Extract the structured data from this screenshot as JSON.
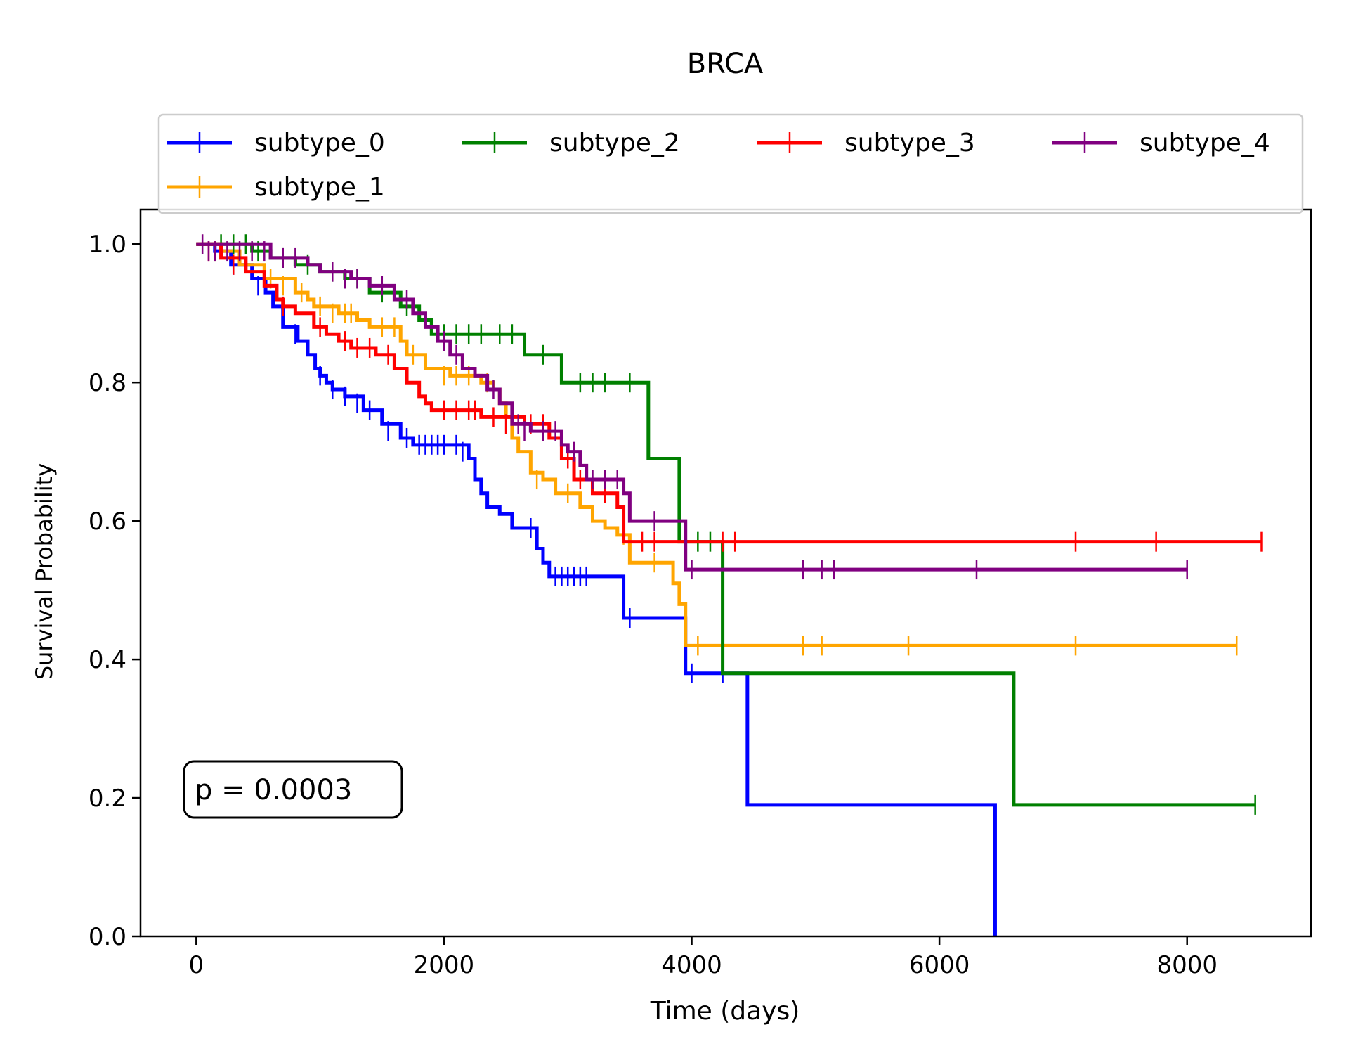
{
  "chart_data": {
    "type": "line",
    "title": "BRCA",
    "xlabel": "Time (days)",
    "ylabel": "Survival Probability",
    "xlim": [
      -450,
      9000
    ],
    "ylim": [
      0.0,
      1.05
    ],
    "x_ticks": [
      0,
      2000,
      4000,
      6000,
      8000
    ],
    "x_tick_labels": [
      "0",
      "2000",
      "4000",
      "6000",
      "8000"
    ],
    "y_ticks": [
      0.0,
      0.2,
      0.4,
      0.6,
      0.8,
      1.0
    ],
    "y_tick_labels": [
      "0.0",
      "0.2",
      "0.4",
      "0.6",
      "0.8",
      "1.0"
    ],
    "grid": false,
    "legend": {
      "placement": "top-center, above plot",
      "columns": 4
    },
    "annotation": {
      "text": "p = 0.0003",
      "placement": "lower-left"
    },
    "series": [
      {
        "name": "subtype_0",
        "color": "#0000ff",
        "steps": [
          [
            0,
            1.0
          ],
          [
            150,
            0.99
          ],
          [
            280,
            0.97
          ],
          [
            450,
            0.95
          ],
          [
            560,
            0.93
          ],
          [
            620,
            0.91
          ],
          [
            700,
            0.88
          ],
          [
            820,
            0.86
          ],
          [
            900,
            0.84
          ],
          [
            960,
            0.82
          ],
          [
            1000,
            0.81
          ],
          [
            1050,
            0.8
          ],
          [
            1100,
            0.79
          ],
          [
            1200,
            0.78
          ],
          [
            1350,
            0.76
          ],
          [
            1500,
            0.74
          ],
          [
            1650,
            0.72
          ],
          [
            1750,
            0.71
          ],
          [
            2200,
            0.69
          ],
          [
            2250,
            0.66
          ],
          [
            2300,
            0.64
          ],
          [
            2350,
            0.62
          ],
          [
            2450,
            0.61
          ],
          [
            2550,
            0.59
          ],
          [
            2750,
            0.56
          ],
          [
            2800,
            0.54
          ],
          [
            2850,
            0.52
          ],
          [
            3450,
            0.46
          ],
          [
            3950,
            0.38
          ],
          [
            4450,
            0.19
          ],
          [
            6450,
            0.0
          ]
        ],
        "end_x": 6450,
        "censored": [
          [
            300,
            0.97
          ],
          [
            500,
            0.94
          ],
          [
            800,
            0.87
          ],
          [
            1000,
            0.81
          ],
          [
            1100,
            0.79
          ],
          [
            1200,
            0.78
          ],
          [
            1300,
            0.77
          ],
          [
            1400,
            0.76
          ],
          [
            1550,
            0.73
          ],
          [
            1700,
            0.72
          ],
          [
            1800,
            0.71
          ],
          [
            1850,
            0.71
          ],
          [
            1900,
            0.71
          ],
          [
            1950,
            0.71
          ],
          [
            2000,
            0.71
          ],
          [
            2100,
            0.71
          ],
          [
            2150,
            0.7
          ],
          [
            2700,
            0.59
          ],
          [
            2900,
            0.52
          ],
          [
            2950,
            0.52
          ],
          [
            3000,
            0.52
          ],
          [
            3050,
            0.52
          ],
          [
            3100,
            0.52
          ],
          [
            3150,
            0.52
          ],
          [
            3500,
            0.46
          ],
          [
            4000,
            0.38
          ],
          [
            4250,
            0.38
          ]
        ]
      },
      {
        "name": "subtype_1",
        "color": "#ffa500",
        "steps": [
          [
            0,
            1.0
          ],
          [
            200,
            0.99
          ],
          [
            350,
            0.97
          ],
          [
            550,
            0.95
          ],
          [
            800,
            0.93
          ],
          [
            900,
            0.92
          ],
          [
            950,
            0.91
          ],
          [
            1150,
            0.9
          ],
          [
            1300,
            0.89
          ],
          [
            1400,
            0.88
          ],
          [
            1650,
            0.86
          ],
          [
            1700,
            0.84
          ],
          [
            1850,
            0.82
          ],
          [
            2050,
            0.81
          ],
          [
            2300,
            0.8
          ],
          [
            2400,
            0.79
          ],
          [
            2450,
            0.77
          ],
          [
            2500,
            0.75
          ],
          [
            2550,
            0.72
          ],
          [
            2600,
            0.7
          ],
          [
            2700,
            0.67
          ],
          [
            2800,
            0.66
          ],
          [
            2900,
            0.64
          ],
          [
            3100,
            0.62
          ],
          [
            3200,
            0.6
          ],
          [
            3300,
            0.59
          ],
          [
            3400,
            0.58
          ],
          [
            3500,
            0.54
          ],
          [
            3850,
            0.51
          ],
          [
            3900,
            0.48
          ],
          [
            3950,
            0.42
          ]
        ],
        "end_x": 8400,
        "censored": [
          [
            150,
            0.99
          ],
          [
            300,
            0.98
          ],
          [
            600,
            0.95
          ],
          [
            700,
            0.94
          ],
          [
            850,
            0.93
          ],
          [
            1000,
            0.91
          ],
          [
            1100,
            0.9
          ],
          [
            1200,
            0.9
          ],
          [
            1250,
            0.9
          ],
          [
            1500,
            0.88
          ],
          [
            1600,
            0.88
          ],
          [
            1750,
            0.84
          ],
          [
            2000,
            0.81
          ],
          [
            2100,
            0.81
          ],
          [
            2200,
            0.81
          ],
          [
            2350,
            0.8
          ],
          [
            2750,
            0.66
          ],
          [
            3000,
            0.64
          ],
          [
            3450,
            0.58
          ],
          [
            3700,
            0.54
          ],
          [
            4050,
            0.42
          ],
          [
            4900,
            0.42
          ],
          [
            5050,
            0.42
          ],
          [
            5750,
            0.42
          ],
          [
            7100,
            0.42
          ],
          [
            8400,
            0.42
          ]
        ]
      },
      {
        "name": "subtype_2",
        "color": "#008000",
        "steps": [
          [
            0,
            1.0
          ],
          [
            450,
            0.99
          ],
          [
            600,
            0.98
          ],
          [
            800,
            0.97
          ],
          [
            1000,
            0.96
          ],
          [
            1200,
            0.95
          ],
          [
            1400,
            0.93
          ],
          [
            1650,
            0.91
          ],
          [
            1800,
            0.89
          ],
          [
            1900,
            0.87
          ],
          [
            2650,
            0.84
          ],
          [
            2950,
            0.8
          ],
          [
            3650,
            0.69
          ],
          [
            3900,
            0.57
          ],
          [
            4250,
            0.38
          ],
          [
            6600,
            0.19
          ]
        ],
        "end_x": 8550,
        "censored": [
          [
            200,
            1.0
          ],
          [
            300,
            1.0
          ],
          [
            400,
            1.0
          ],
          [
            500,
            0.99
          ],
          [
            700,
            0.98
          ],
          [
            900,
            0.97
          ],
          [
            1100,
            0.96
          ],
          [
            1300,
            0.95
          ],
          [
            1500,
            0.93
          ],
          [
            1700,
            0.91
          ],
          [
            2000,
            0.87
          ],
          [
            2100,
            0.87
          ],
          [
            2200,
            0.87
          ],
          [
            2300,
            0.87
          ],
          [
            2450,
            0.87
          ],
          [
            2550,
            0.87
          ],
          [
            2800,
            0.84
          ],
          [
            3100,
            0.8
          ],
          [
            3200,
            0.8
          ],
          [
            3300,
            0.8
          ],
          [
            3500,
            0.8
          ],
          [
            4050,
            0.57
          ],
          [
            4150,
            0.57
          ],
          [
            8550,
            0.19
          ]
        ]
      },
      {
        "name": "subtype_3",
        "color": "#ff0000",
        "steps": [
          [
            0,
            1.0
          ],
          [
            200,
            0.98
          ],
          [
            400,
            0.96
          ],
          [
            550,
            0.94
          ],
          [
            650,
            0.92
          ],
          [
            700,
            0.91
          ],
          [
            800,
            0.9
          ],
          [
            950,
            0.88
          ],
          [
            1050,
            0.87
          ],
          [
            1150,
            0.86
          ],
          [
            1250,
            0.85
          ],
          [
            1450,
            0.84
          ],
          [
            1600,
            0.82
          ],
          [
            1700,
            0.8
          ],
          [
            1800,
            0.78
          ],
          [
            1850,
            0.77
          ],
          [
            1900,
            0.76
          ],
          [
            2300,
            0.75
          ],
          [
            2650,
            0.74
          ],
          [
            2850,
            0.72
          ],
          [
            2950,
            0.69
          ],
          [
            3050,
            0.66
          ],
          [
            3200,
            0.64
          ],
          [
            3400,
            0.62
          ],
          [
            3450,
            0.57
          ]
        ],
        "end_x": 8600,
        "censored": [
          [
            100,
            0.99
          ],
          [
            300,
            0.97
          ],
          [
            700,
            0.91
          ],
          [
            1000,
            0.88
          ],
          [
            1200,
            0.86
          ],
          [
            1300,
            0.85
          ],
          [
            1400,
            0.85
          ],
          [
            1550,
            0.84
          ],
          [
            2000,
            0.76
          ],
          [
            2100,
            0.76
          ],
          [
            2200,
            0.76
          ],
          [
            2250,
            0.76
          ],
          [
            2400,
            0.75
          ],
          [
            2500,
            0.74
          ],
          [
            2700,
            0.74
          ],
          [
            2800,
            0.74
          ],
          [
            3000,
            0.69
          ],
          [
            3100,
            0.66
          ],
          [
            3300,
            0.64
          ],
          [
            3600,
            0.57
          ],
          [
            3700,
            0.57
          ],
          [
            4250,
            0.57
          ],
          [
            4350,
            0.57
          ],
          [
            7100,
            0.57
          ],
          [
            7750,
            0.57
          ],
          [
            8600,
            0.57
          ]
        ]
      },
      {
        "name": "subtype_4",
        "color": "#800080",
        "steps": [
          [
            0,
            1.0
          ],
          [
            600,
            0.98
          ],
          [
            900,
            0.97
          ],
          [
            1000,
            0.96
          ],
          [
            1250,
            0.95
          ],
          [
            1400,
            0.94
          ],
          [
            1600,
            0.92
          ],
          [
            1750,
            0.9
          ],
          [
            1850,
            0.88
          ],
          [
            1950,
            0.86
          ],
          [
            2050,
            0.84
          ],
          [
            2150,
            0.82
          ],
          [
            2250,
            0.81
          ],
          [
            2350,
            0.79
          ],
          [
            2450,
            0.77
          ],
          [
            2550,
            0.74
          ],
          [
            2700,
            0.73
          ],
          [
            2950,
            0.71
          ],
          [
            3000,
            0.7
          ],
          [
            3100,
            0.68
          ],
          [
            3150,
            0.66
          ],
          [
            3450,
            0.64
          ],
          [
            3500,
            0.6
          ],
          [
            3950,
            0.53
          ]
        ],
        "end_x": 8000,
        "censored": [
          [
            50,
            1.0
          ],
          [
            100,
            0.99
          ],
          [
            150,
            0.99
          ],
          [
            250,
            0.99
          ],
          [
            350,
            0.99
          ],
          [
            450,
            0.99
          ],
          [
            550,
            0.99
          ],
          [
            700,
            0.98
          ],
          [
            800,
            0.98
          ],
          [
            1100,
            0.96
          ],
          [
            1200,
            0.95
          ],
          [
            1300,
            0.95
          ],
          [
            1500,
            0.94
          ],
          [
            1700,
            0.92
          ],
          [
            2000,
            0.86
          ],
          [
            2100,
            0.84
          ],
          [
            2400,
            0.79
          ],
          [
            2600,
            0.74
          ],
          [
            2650,
            0.73
          ],
          [
            2800,
            0.73
          ],
          [
            2900,
            0.73
          ],
          [
            3050,
            0.7
          ],
          [
            3200,
            0.66
          ],
          [
            3300,
            0.66
          ],
          [
            3400,
            0.66
          ],
          [
            3700,
            0.6
          ],
          [
            4000,
            0.53
          ],
          [
            4900,
            0.53
          ],
          [
            5050,
            0.53
          ],
          [
            5150,
            0.53
          ],
          [
            6300,
            0.53
          ],
          [
            8000,
            0.53
          ]
        ]
      }
    ]
  }
}
